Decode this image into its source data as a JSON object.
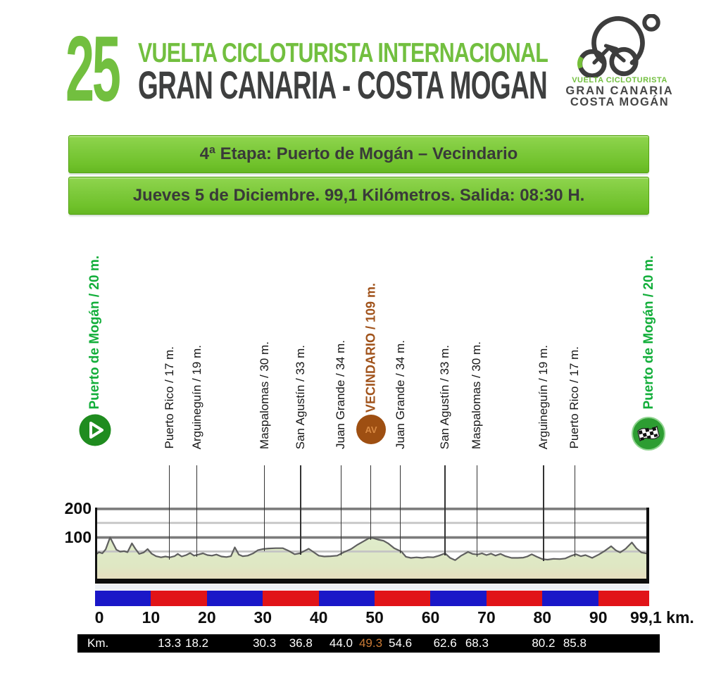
{
  "header": {
    "edition": "25",
    "title_line1": "VUELTA CICLOTURISTA INTERNACIONAL",
    "title_line2": "GRAN CANARIA - COSTA MOGAN"
  },
  "logo": {
    "line1": "VUELTA CICLOTURISTA",
    "line2": "GRAN CANARIA",
    "line3": "COSTA MOGÁN"
  },
  "banners": {
    "stage": "4ª Etapa: Puerto de Mogán – Vecindario",
    "info": "Jueves 5 de Diciembre. 99,1 Kilómetros. Salida: 08:30 H."
  },
  "colors": {
    "green": "#72bf3f",
    "label_green": "#12ae3a",
    "brown": "#a0521a",
    "bar_blue": "#1a17c8",
    "bar_red": "#e11418",
    "km_highlight": "#c97a36",
    "grid_dark": "#7b7b7b",
    "grid_light": "#c4c4c4"
  },
  "chart_data": {
    "type": "area",
    "x_unit": "km",
    "y_unit": "m",
    "xlim": [
      0,
      99.1
    ],
    "ylim": [
      0,
      220
    ],
    "x_ticks": [
      "0",
      "10",
      "20",
      "30",
      "40",
      "50",
      "60",
      "70",
      "80",
      "90"
    ],
    "x_end_label": "99,1 km.",
    "y_ticks": [
      "100",
      "200"
    ],
    "grid_light_levels": [
      50,
      150
    ],
    "grid_dark_levels": [
      100,
      200
    ],
    "segment_km": 10,
    "landmarks": [
      {
        "label": "Puerto de Mogán / 20 m.",
        "km": 0,
        "elev": 20,
        "type": "start"
      },
      {
        "label": "Puerto Rico / 17 m.",
        "km": 13.3,
        "elev": 17,
        "type": "town"
      },
      {
        "label": "Arguineguín / 19 m.",
        "km": 18.2,
        "elev": 19,
        "type": "town"
      },
      {
        "label": "Maspalomas / 30 m.",
        "km": 30.3,
        "elev": 30,
        "type": "town"
      },
      {
        "label": "San Agustín / 33 m.",
        "km": 36.8,
        "elev": 33,
        "type": "town"
      },
      {
        "label": "Juan Grande / 34 m.",
        "km": 44.0,
        "elev": 34,
        "type": "town"
      },
      {
        "label": "VECINDARIO / 109 m.",
        "km": 49.3,
        "elev": 109,
        "type": "turn",
        "badge": "AV"
      },
      {
        "label": "Juan Grande / 34 m.",
        "km": 54.6,
        "elev": 34,
        "type": "town"
      },
      {
        "label": "San Agustín / 33 m.",
        "km": 62.6,
        "elev": 33,
        "type": "town"
      },
      {
        "label": "Maspalomas / 30 m.",
        "km": 68.3,
        "elev": 30,
        "type": "town"
      },
      {
        "label": "Arguineguín / 19 m.",
        "km": 80.2,
        "elev": 19,
        "type": "town"
      },
      {
        "label": "Puerto Rico / 17 m.",
        "km": 85.8,
        "elev": 17,
        "type": "town"
      },
      {
        "label": "Puerto de Mogán / 20 m.",
        "km": 99.1,
        "elev": 20,
        "type": "finish"
      }
    ],
    "km_row": {
      "label": "Km.",
      "values": [
        {
          "text": "13.3",
          "km": 13.3
        },
        {
          "text": "18.2",
          "km": 18.2
        },
        {
          "text": "30.3",
          "km": 30.3
        },
        {
          "text": "36.8",
          "km": 36.8
        },
        {
          "text": "44.0",
          "km": 44.0
        },
        {
          "text": "49.3",
          "km": 49.3,
          "highlight": true
        },
        {
          "text": "54.6",
          "km": 54.6
        },
        {
          "text": "62.6",
          "km": 62.6
        },
        {
          "text": "68.3",
          "km": 68.3
        },
        {
          "text": "80.2",
          "km": 80.2
        },
        {
          "text": "85.8",
          "km": 85.8
        }
      ]
    },
    "profile": [
      [
        0,
        38
      ],
      [
        0.7,
        48
      ],
      [
        1.3,
        44
      ],
      [
        1.9,
        58
      ],
      [
        2.7,
        100
      ],
      [
        3.2,
        80
      ],
      [
        3.8,
        57
      ],
      [
        4.5,
        50
      ],
      [
        5.2,
        52
      ],
      [
        5.8,
        48
      ],
      [
        6.6,
        79
      ],
      [
        7.2,
        60
      ],
      [
        7.9,
        42
      ],
      [
        8.7,
        47
      ],
      [
        9.4,
        59
      ],
      [
        10.1,
        43
      ],
      [
        10.9,
        34
      ],
      [
        11.8,
        30
      ],
      [
        12.6,
        33
      ],
      [
        13.4,
        30
      ],
      [
        14.2,
        34
      ],
      [
        14.8,
        42
      ],
      [
        15.5,
        33
      ],
      [
        16.3,
        38
      ],
      [
        17.0,
        45
      ],
      [
        17.7,
        36
      ],
      [
        18.5,
        40
      ],
      [
        19.3,
        44
      ],
      [
        20.1,
        38
      ],
      [
        20.9,
        36
      ],
      [
        21.7,
        40
      ],
      [
        22.6,
        33
      ],
      [
        23.5,
        31
      ],
      [
        24.3,
        34
      ],
      [
        25.0,
        65
      ],
      [
        25.7,
        40
      ],
      [
        26.4,
        34
      ],
      [
        27.3,
        36
      ],
      [
        28.3,
        44
      ],
      [
        29.1,
        55
      ],
      [
        30.0,
        59
      ],
      [
        31.1,
        61
      ],
      [
        32.3,
        62
      ],
      [
        33.6,
        62
      ],
      [
        34.7,
        52
      ],
      [
        35.7,
        41
      ],
      [
        36.6,
        44
      ],
      [
        37.4,
        52
      ],
      [
        38.2,
        60
      ],
      [
        39.1,
        48
      ],
      [
        40.0,
        36
      ],
      [
        41.0,
        33
      ],
      [
        42.1,
        34
      ],
      [
        43.3,
        36
      ],
      [
        44.5,
        48
      ],
      [
        45.8,
        59
      ],
      [
        46.9,
        74
      ],
      [
        47.9,
        85
      ],
      [
        48.9,
        96
      ],
      [
        49.6,
        98
      ],
      [
        50.6,
        92
      ],
      [
        51.6,
        88
      ],
      [
        52.4,
        79
      ],
      [
        53.5,
        62
      ],
      [
        54.8,
        50
      ],
      [
        55.6,
        32
      ],
      [
        56.5,
        28
      ],
      [
        57.5,
        30
      ],
      [
        58.5,
        28
      ],
      [
        59.5,
        31
      ],
      [
        60.5,
        30
      ],
      [
        61.5,
        36
      ],
      [
        62.6,
        44
      ],
      [
        63.5,
        28
      ],
      [
        64.4,
        20
      ],
      [
        65.4,
        35
      ],
      [
        66.7,
        49
      ],
      [
        67.5,
        42
      ],
      [
        68.4,
        40
      ],
      [
        69.2,
        44
      ],
      [
        70.0,
        38
      ],
      [
        70.8,
        43
      ],
      [
        71.6,
        36
      ],
      [
        72.5,
        42
      ],
      [
        73.4,
        34
      ],
      [
        74.5,
        28
      ],
      [
        75.6,
        28
      ],
      [
        76.6,
        29
      ],
      [
        77.3,
        33
      ],
      [
        78.1,
        41
      ],
      [
        79.0,
        32
      ],
      [
        80.0,
        24
      ],
      [
        80.9,
        22
      ],
      [
        82.0,
        25
      ],
      [
        83.1,
        24
      ],
      [
        84.1,
        26
      ],
      [
        85.1,
        35
      ],
      [
        86.0,
        41
      ],
      [
        86.9,
        34
      ],
      [
        87.7,
        38
      ],
      [
        88.9,
        28
      ],
      [
        90.1,
        40
      ],
      [
        91.1,
        52
      ],
      [
        92.3,
        69
      ],
      [
        93.1,
        55
      ],
      [
        93.9,
        47
      ],
      [
        94.9,
        60
      ],
      [
        96.0,
        82
      ],
      [
        96.8,
        62
      ],
      [
        97.7,
        47
      ],
      [
        98.5,
        44
      ],
      [
        99.1,
        41
      ]
    ]
  }
}
